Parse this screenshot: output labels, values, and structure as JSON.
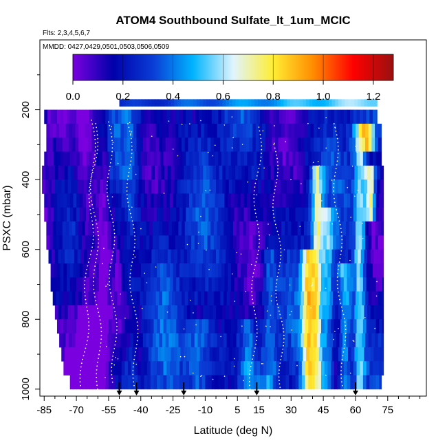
{
  "chart_data": {
    "type": "heatmap",
    "title": "ATOM4 Southbound Sulfate_lt_1um_MCIC",
    "flights_label": "Flts: 2,3,4,5,6,7",
    "dates_label": "MMDD: 0427,0429,0501,0503,0506,0509",
    "xlabel": "Latitude (deg N)",
    "ylabel": "PSXC (mbar)",
    "xlim": [
      -87,
      93
    ],
    "ylim": [
      1020,
      0
    ],
    "x_ticks": [
      -85,
      -70,
      -55,
      -40,
      -25,
      -10,
      5,
      15,
      30,
      45,
      60,
      75
    ],
    "y_ticks": [
      200,
      400,
      600,
      800,
      1000
    ],
    "colorbar": {
      "min": 0.0,
      "max": 1.28,
      "ticks": [
        0.0,
        0.2,
        0.4,
        0.6,
        0.8,
        1.0,
        1.2
      ],
      "tick_labels": [
        "0.0",
        "0.2",
        "0.4",
        "0.6",
        "0.8",
        "1.0",
        "1.2"
      ],
      "colors": [
        "#7a00e0",
        "#0000aa",
        "#0a3cd6",
        "#00b4ff",
        "#e0f4ff",
        "#ffee33",
        "#ff8c00",
        "#ff0000",
        "#9a1010"
      ]
    },
    "flight_tracks": [
      {
        "start_lat": -61,
        "end_lat": -67,
        "p_top": 240,
        "p_bottom": 990
      },
      {
        "start_lat": -63,
        "end_lat": -59,
        "p_top": 230,
        "p_bottom": 1000
      },
      {
        "start_lat": -55,
        "end_lat": -52,
        "p_top": 235,
        "p_bottom": 980
      },
      {
        "start_lat": -46,
        "end_lat": -42,
        "p_top": 240,
        "p_bottom": 990
      },
      {
        "start_lat": 15,
        "end_lat": 12,
        "p_top": 250,
        "p_bottom": 1000
      },
      {
        "start_lat": 22,
        "end_lat": 26,
        "p_top": 300,
        "p_bottom": 995
      },
      {
        "start_lat": 50,
        "end_lat": 55,
        "p_top": 240,
        "p_bottom": 990
      }
    ],
    "profile_markers_lat": [
      -50,
      -42,
      -20,
      14,
      60
    ],
    "rows": [
      {
        "p": 180,
        "x0": -50,
        "x1": 70,
        "pattern": "upper"
      },
      {
        "p": 220,
        "x0": -85,
        "x1": 70,
        "pattern": "a"
      },
      {
        "p": 260,
        "x0": -84,
        "x1": 72,
        "pattern": "b"
      },
      {
        "p": 300,
        "x0": -84,
        "x1": 72,
        "pattern": "c"
      },
      {
        "p": 340,
        "x0": -85,
        "x1": 72,
        "pattern": "d"
      },
      {
        "p": 380,
        "x0": -86,
        "x1": 73,
        "pattern": "e"
      },
      {
        "p": 420,
        "x0": -86,
        "x1": 73,
        "pattern": "f"
      },
      {
        "p": 460,
        "x0": -85,
        "x1": 73,
        "pattern": "g"
      },
      {
        "p": 500,
        "x0": -85,
        "x1": 73,
        "pattern": "h"
      },
      {
        "p": 540,
        "x0": -84,
        "x1": 73,
        "pattern": "i"
      },
      {
        "p": 580,
        "x0": -84,
        "x1": 73,
        "pattern": "j"
      },
      {
        "p": 620,
        "x0": -83,
        "x1": 73,
        "pattern": "k"
      },
      {
        "p": 660,
        "x0": -82,
        "x1": 73,
        "pattern": "l"
      },
      {
        "p": 700,
        "x0": -82,
        "x1": 73,
        "pattern": "m"
      },
      {
        "p": 740,
        "x0": -81,
        "x1": 73,
        "pattern": "n"
      },
      {
        "p": 780,
        "x0": -80,
        "x1": 73,
        "pattern": "o"
      },
      {
        "p": 820,
        "x0": -79,
        "x1": 73,
        "pattern": "p"
      },
      {
        "p": 860,
        "x0": -78,
        "x1": 73,
        "pattern": "q"
      },
      {
        "p": 900,
        "x0": -77,
        "x1": 73,
        "pattern": "r"
      },
      {
        "p": 940,
        "x0": -76,
        "x1": 73,
        "pattern": "s"
      },
      {
        "p": 980,
        "x0": -73,
        "x1": 72,
        "pattern": "t"
      }
    ]
  }
}
